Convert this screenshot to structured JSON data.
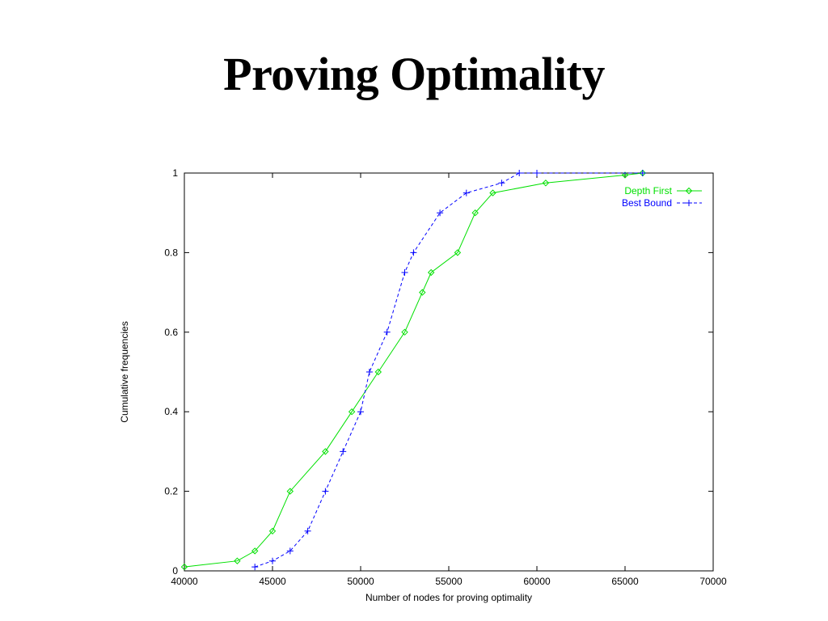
{
  "slide": {
    "title": "Proving Optimality"
  },
  "chart_data": {
    "type": "line",
    "xlabel": "Number of nodes for proving optimality",
    "ylabel": "Cumulative frequencies",
    "xlim": [
      40000,
      70000
    ],
    "ylim": [
      0,
      1
    ],
    "xticks": [
      40000,
      45000,
      50000,
      55000,
      60000,
      65000,
      70000
    ],
    "yticks": [
      0,
      0.2,
      0.4,
      0.6,
      0.8,
      1
    ],
    "ytick_labels": [
      "0",
      "0.2",
      "0.4",
      "0.6",
      "0.8",
      "1"
    ],
    "grid": false,
    "legend": "top-right",
    "series": [
      {
        "name": "Depth First",
        "color": "#00e000",
        "marker": "diamond",
        "line": "solid",
        "x": [
          40000,
          43000,
          44000,
          45000,
          46000,
          48000,
          49500,
          51000,
          52500,
          53500,
          54000,
          55500,
          56500,
          57500,
          60500,
          65000,
          66000
        ],
        "y": [
          0.01,
          0.025,
          0.05,
          0.1,
          0.2,
          0.3,
          0.4,
          0.5,
          0.6,
          0.7,
          0.75,
          0.8,
          0.9,
          0.95,
          0.975,
          0.995,
          1.0
        ]
      },
      {
        "name": "Best Bound",
        "color": "#0000ff",
        "marker": "plus",
        "line": "dashed",
        "x": [
          44000,
          45000,
          46000,
          47000,
          48000,
          49000,
          50000,
          50500,
          51500,
          52500,
          53000,
          54500,
          56000,
          58000,
          59000,
          60000,
          66000
        ],
        "y": [
          0.01,
          0.025,
          0.05,
          0.1,
          0.2,
          0.3,
          0.4,
          0.5,
          0.6,
          0.75,
          0.8,
          0.9,
          0.95,
          0.975,
          1.0,
          1.0,
          1.0
        ]
      }
    ]
  }
}
